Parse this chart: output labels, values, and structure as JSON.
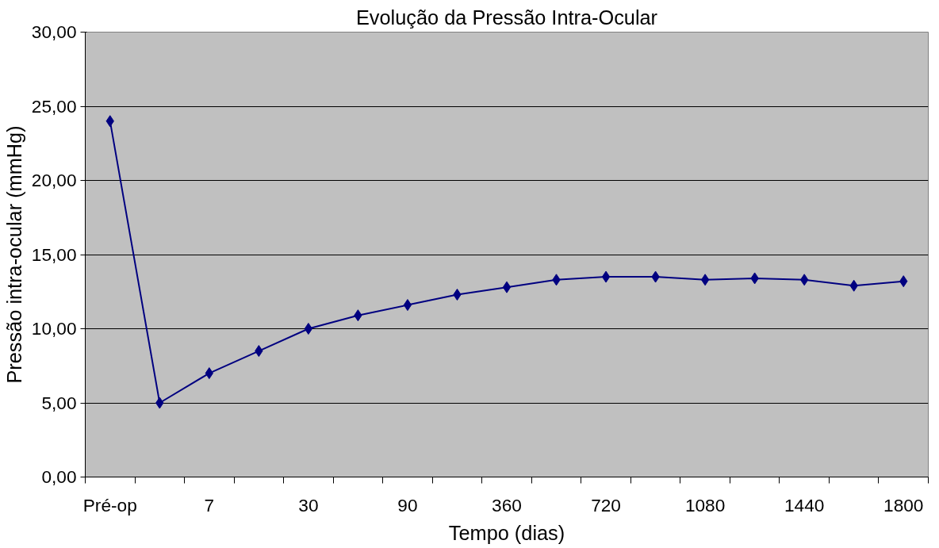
{
  "chart_data": {
    "type": "line",
    "title": "Evolução da Pressão Intra-Ocular",
    "xlabel": "Tempo (dias)",
    "ylabel": "Pressão intra-ocular (mmHg)",
    "categories": [
      "Pré-op",
      null,
      "7",
      null,
      "30",
      null,
      "90",
      null,
      "360",
      null,
      "720",
      null,
      "1080",
      null,
      "1440",
      null,
      "1800"
    ],
    "series": [
      {
        "color": "#000080",
        "values": [
          24.0,
          5.0,
          7.0,
          8.5,
          10.0,
          10.9,
          11.6,
          12.3,
          12.8,
          13.3,
          13.5,
          13.5,
          13.3,
          13.4,
          13.3,
          12.9,
          13.2
        ]
      }
    ],
    "ylim": [
      0,
      30
    ],
    "yticks": [
      {
        "value": 0,
        "label": "0,00"
      },
      {
        "value": 5,
        "label": "5,00"
      },
      {
        "value": 10,
        "label": "10,00"
      },
      {
        "value": 15,
        "label": "15,00"
      },
      {
        "value": 20,
        "label": "20,00"
      },
      {
        "value": 25,
        "label": "25,00"
      },
      {
        "value": 30,
        "label": "30,00"
      }
    ],
    "grid": "y",
    "marker": "diamond",
    "line_style": "solid"
  }
}
